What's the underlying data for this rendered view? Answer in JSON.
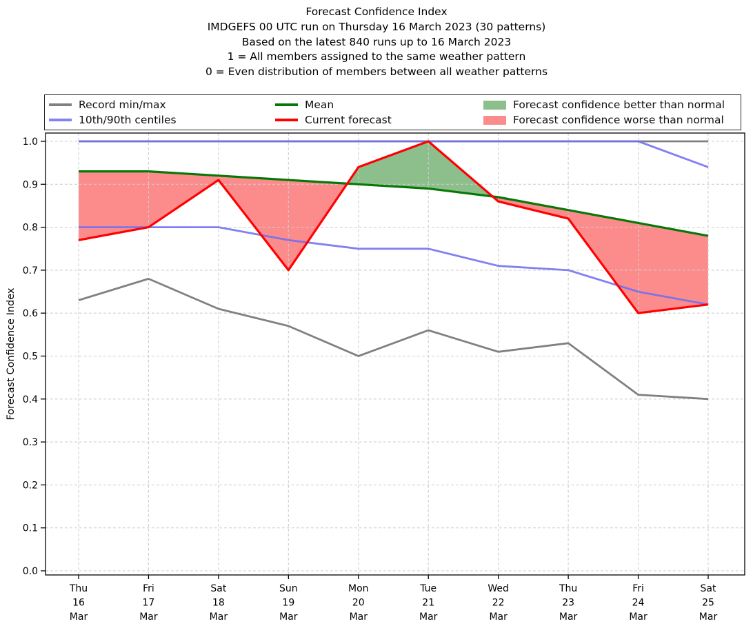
{
  "header": {
    "lines": [
      "Forecast Confidence Index",
      "IMDGEFS 00 UTC run on Thursday 16 March 2023 (30 patterns)",
      "Based on the latest 840 runs up to 16 March 2023",
      "1 = All members assigned to the same weather pattern",
      "0 = Even distribution of members between all weather patterns"
    ]
  },
  "legend": {
    "items": [
      {
        "label": "Record min/max",
        "type": "line",
        "color": "#808080"
      },
      {
        "label": "10th/90th centiles",
        "type": "line",
        "color": "#8282F2"
      },
      {
        "label": "Mean",
        "type": "line",
        "color": "#077807"
      },
      {
        "label": "Current forecast",
        "type": "line",
        "color": "#FF0000"
      },
      {
        "label": "Forecast confidence better than normal",
        "type": "patch",
        "color": "#8CBF8C"
      },
      {
        "label": "Forecast confidence worse than normal",
        "type": "patch",
        "color": "#FC8C8C"
      }
    ]
  },
  "chart_data": {
    "type": "line",
    "title": "Forecast Confidence Index",
    "ylabel": "Forecast Confidence Index",
    "xlabel": "",
    "ylim": [
      0.0,
      1.0
    ],
    "grid": true,
    "legend_position": "top",
    "yticks": [
      "0.0",
      "0.1",
      "0.2",
      "0.3",
      "0.4",
      "0.5",
      "0.6",
      "0.7",
      "0.8",
      "0.9",
      "1.0"
    ],
    "categories": [
      [
        "Thu",
        "16",
        "Mar"
      ],
      [
        "Fri",
        "17",
        "Mar"
      ],
      [
        "Sat",
        "18",
        "Mar"
      ],
      [
        "Sun",
        "19",
        "Mar"
      ],
      [
        "Mon",
        "20",
        "Mar"
      ],
      [
        "Tue",
        "21",
        "Mar"
      ],
      [
        "Wed",
        "22",
        "Mar"
      ],
      [
        "Thu",
        "23",
        "Mar"
      ],
      [
        "Fri",
        "24",
        "Mar"
      ],
      [
        "Sat",
        "25",
        "Mar"
      ]
    ],
    "series": [
      {
        "role": "record_min",
        "name": "Record min",
        "color": "#808080",
        "values": [
          0.63,
          0.68,
          0.61,
          0.57,
          0.5,
          0.56,
          0.51,
          0.53,
          0.41,
          0.4
        ]
      },
      {
        "role": "record_max",
        "name": "Record max",
        "color": "#808080",
        "values": [
          1.0,
          1.0,
          1.0,
          1.0,
          1.0,
          1.0,
          1.0,
          1.0,
          1.0,
          1.0
        ]
      },
      {
        "role": "p10",
        "name": "10th centile",
        "color": "#6E6EF0",
        "values": [
          0.8,
          0.8,
          0.8,
          0.77,
          0.75,
          0.75,
          0.71,
          0.7,
          0.65,
          0.62
        ]
      },
      {
        "role": "p90",
        "name": "90th centile",
        "color": "#6E6EF0",
        "values": [
          1.0,
          1.0,
          1.0,
          1.0,
          1.0,
          1.0,
          1.0,
          1.0,
          1.0,
          0.94
        ]
      },
      {
        "role": "mean",
        "name": "Mean",
        "color": "#077807",
        "values": [
          0.93,
          0.93,
          0.92,
          0.91,
          0.9,
          0.89,
          0.87,
          0.84,
          0.81,
          0.78
        ]
      },
      {
        "role": "current",
        "name": "Current forecast",
        "color": "#FF0000",
        "values": [
          0.77,
          0.8,
          0.91,
          0.7,
          0.94,
          1.0,
          0.86,
          0.82,
          0.6,
          0.62
        ]
      }
    ],
    "fills": {
      "between": [
        "current",
        "mean"
      ],
      "better_color": "#8CBF8C",
      "worse_color": "#FC8C8C"
    }
  }
}
